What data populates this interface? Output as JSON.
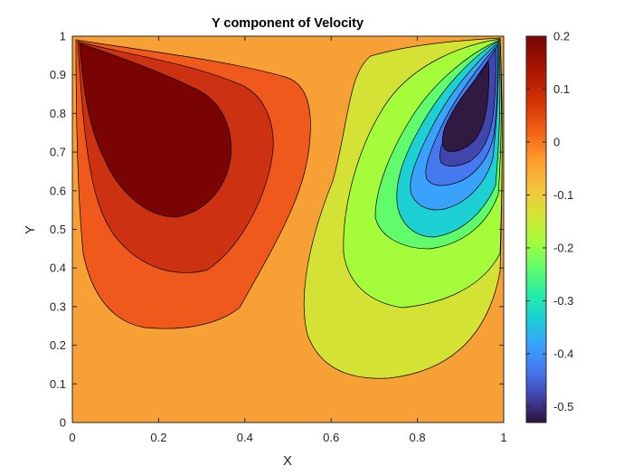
{
  "chart_data": {
    "type": "contour",
    "title": "Y component of Velocity",
    "xlabel": "X",
    "ylabel": "Y",
    "xlim": [
      0,
      1
    ],
    "ylim": [
      0,
      1
    ],
    "x_ticks": [
      "0",
      "0.2",
      "0.4",
      "0.6",
      "0.8",
      "1"
    ],
    "y_ticks": [
      "0",
      "0.1",
      "0.2",
      "0.3",
      "0.4",
      "0.5",
      "0.6",
      "0.7",
      "0.8",
      "0.9",
      "1"
    ],
    "colorbar": {
      "range": [
        -0.53,
        0.2
      ],
      "ticks": [
        "0.2",
        "0.1",
        "0",
        "-0.1",
        "-0.2",
        "-0.3",
        "-0.4",
        "-0.5"
      ],
      "colormap": "turbo"
    },
    "levels": [
      -0.5,
      -0.4,
      -0.3,
      -0.2,
      -0.1,
      0,
      0.1,
      0.2
    ],
    "extremes": {
      "max": {
        "x": 0.22,
        "y": 0.77,
        "value": 0.2
      },
      "min": {
        "x": 0.89,
        "y": 0.82,
        "value": -0.53
      }
    },
    "grid": false,
    "background_color": "#F7A035"
  }
}
